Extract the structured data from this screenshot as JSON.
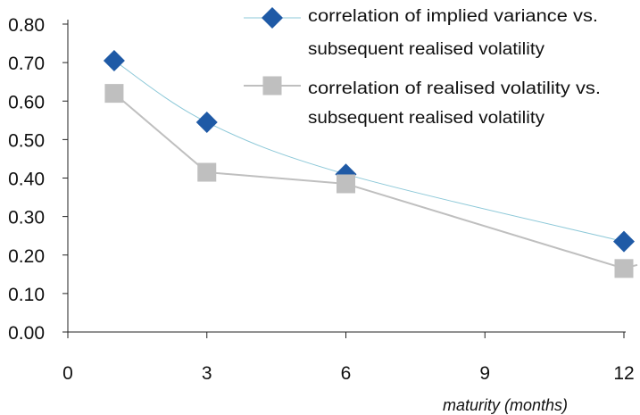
{
  "chart_data": {
    "type": "line",
    "x": [
      1,
      3,
      6,
      12
    ],
    "series": [
      {
        "name_lines": [
          "correlation of implied variance vs.",
          "subsequent realised volatility"
        ],
        "values": [
          0.705,
          0.545,
          0.41,
          0.235
        ],
        "color": "#1F5AA6",
        "line_color": "#8CC8D8",
        "marker": "diamond"
      },
      {
        "name_lines": [
          "correlation of realised volatility vs.",
          "subsequent realised volatility"
        ],
        "values": [
          0.62,
          0.415,
          0.385,
          0.165
        ],
        "color": "#BFBFBF",
        "line_color": "#BFBFBF",
        "marker": "square"
      }
    ],
    "xlabel": "maturity (months)",
    "ylabel": "",
    "xlim": [
      0,
      12
    ],
    "ylim": [
      0,
      0.8
    ],
    "x_ticks": [
      "0",
      "3",
      "6",
      "9",
      "12"
    ],
    "y_ticks": [
      "0.00",
      "0.10",
      "0.20",
      "0.30",
      "0.40",
      "0.50",
      "0.60",
      "0.70",
      "0.80"
    ],
    "grid": false,
    "legend_position": "top-right"
  }
}
